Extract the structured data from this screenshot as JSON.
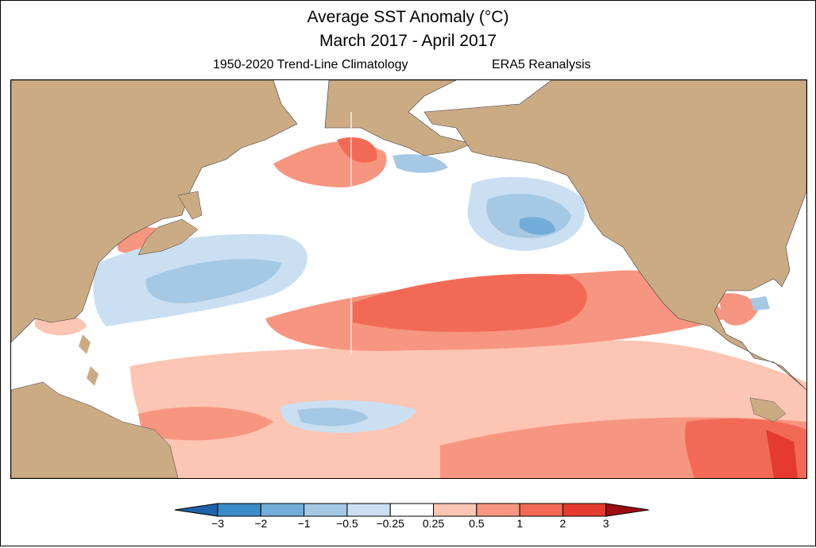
{
  "title": "Average SST Anomaly (°C)",
  "period": "March 2017 - April 2017",
  "climatology": "1950-2020 Trend-Line Climatology",
  "dataset": "ERA5 Reanalysis",
  "colorbar": {
    "ticks": [
      "−3",
      "−2",
      "−1",
      "−0.5",
      "−0.25",
      "0.25",
      "0.5",
      "1",
      "2",
      "3"
    ],
    "colors": [
      "#1f62a8",
      "#3b8cc8",
      "#72acd8",
      "#a5c8e4",
      "#cbdff2",
      "#ffffff",
      "#fdc5b3",
      "#f79680",
      "#f26a55",
      "#e53a2f",
      "#c1171d",
      "#a00b12"
    ]
  },
  "palette": {
    "land": "#cbab84",
    "border": "#3a3a3a"
  }
}
